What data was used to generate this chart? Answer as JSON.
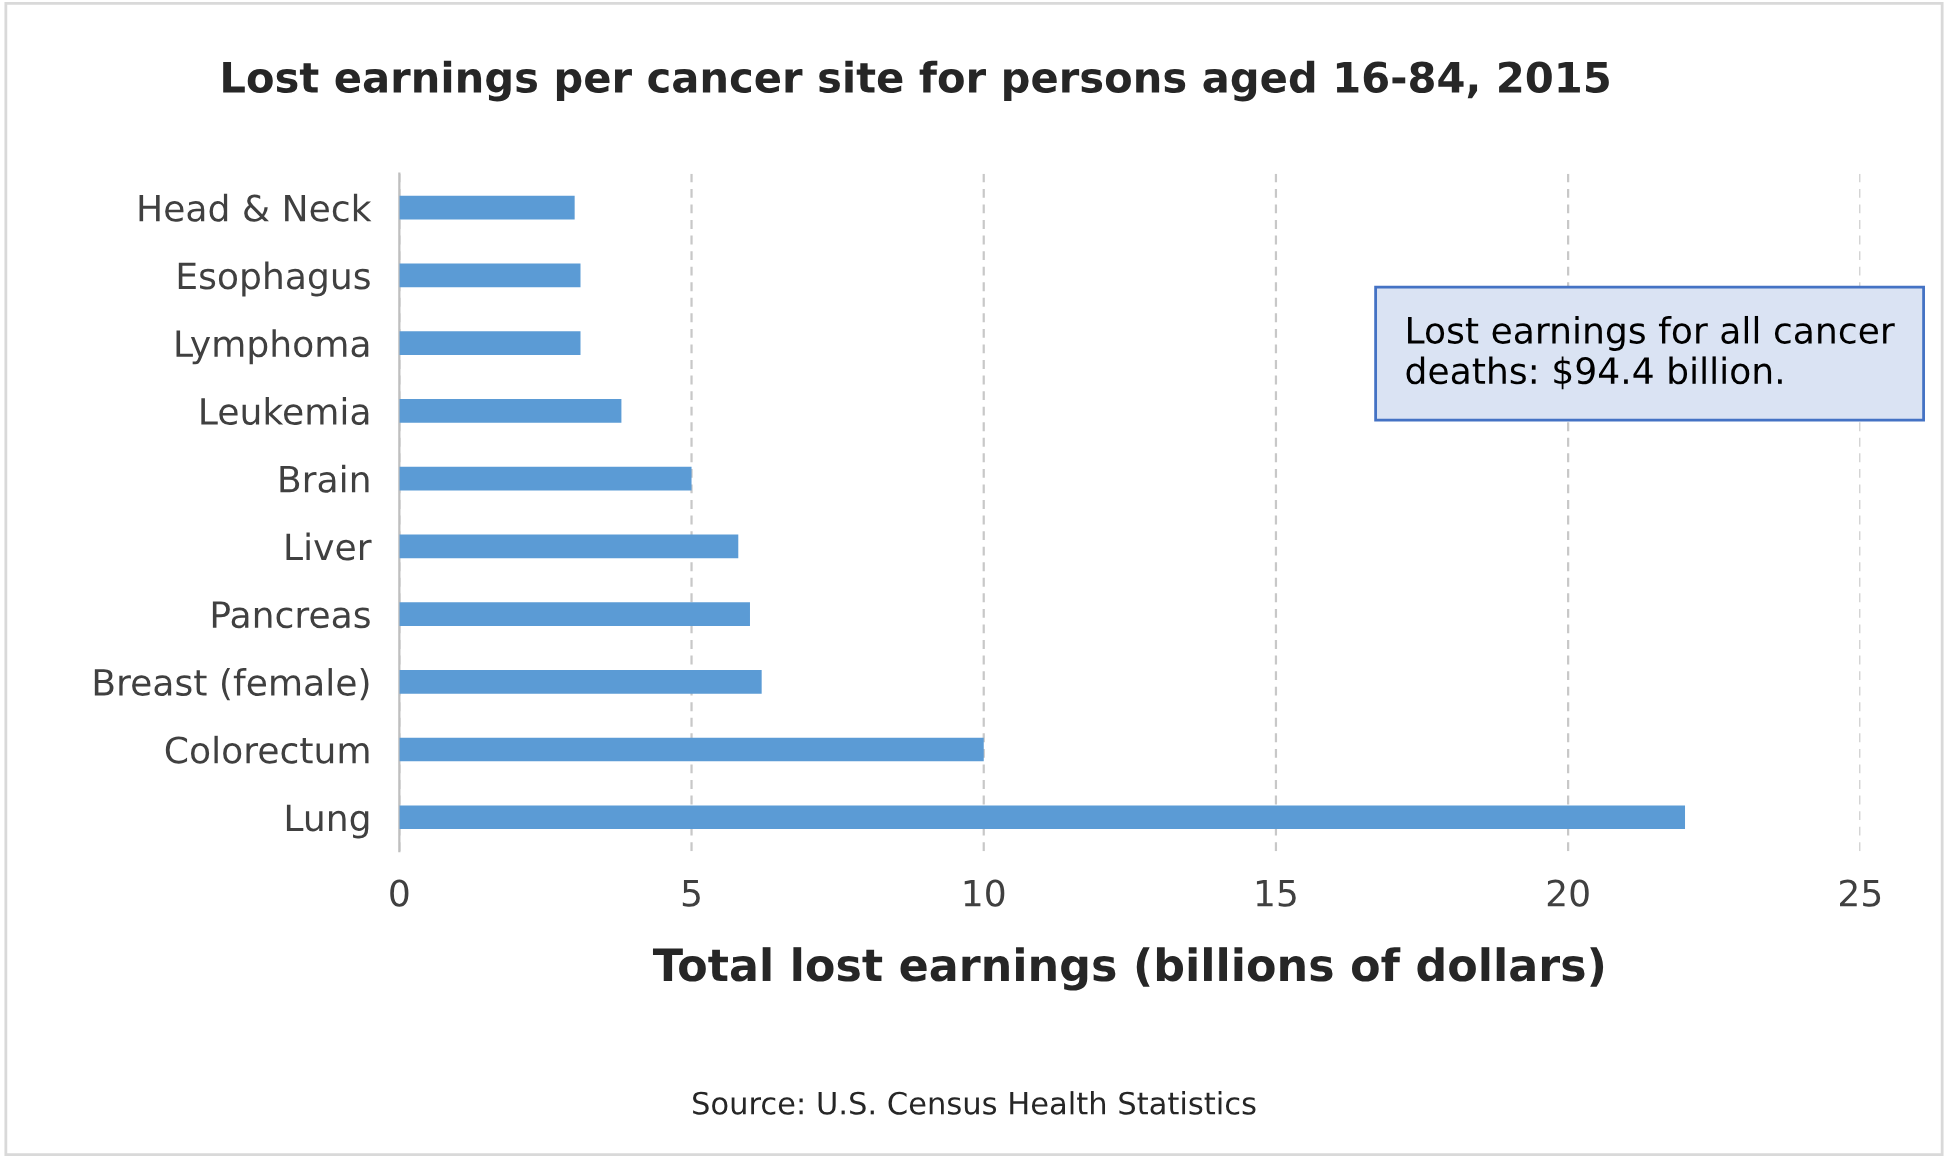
{
  "chart_data": {
    "type": "bar",
    "orientation": "horizontal",
    "title": "Lost earnings per cancer site for persons aged 16-84, 2015",
    "xlabel": "Total lost earnings (billions of dollars)",
    "categories": [
      "Head & Neck",
      "Esophagus",
      "Lymphoma",
      "Leukemia",
      "Brain",
      "Liver",
      "Pancreas",
      "Breast (female)",
      "Colorectum",
      "Lung"
    ],
    "values": [
      3.0,
      3.1,
      3.1,
      3.8,
      5.0,
      5.8,
      6.0,
      6.2,
      10.0,
      22.0
    ],
    "color": "#5b9bd5",
    "xlim": [
      0,
      25
    ],
    "xticks": [
      0,
      5,
      10,
      15,
      20,
      25
    ],
    "grid": "x",
    "legend": false,
    "annotations": [
      "Lost earnings for all cancer deaths: $94.4 billion.",
      "Source: U.S. Census Health Statistics"
    ]
  }
}
